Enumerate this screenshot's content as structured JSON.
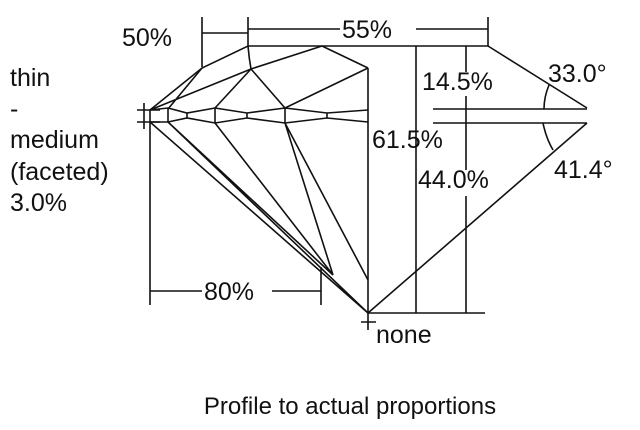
{
  "diagram": {
    "crown_angle_label": "33.0°",
    "pavilion_angle_label": "41.4°",
    "crown_height_label": "14.5%",
    "total_depth_label": "61.5%",
    "pavilion_depth_label": "44.0%",
    "table_label": "55%",
    "star_length_label": "50%",
    "lower_half_label": "80%",
    "culet_label": "none",
    "girdle_labels": [
      "thin",
      "-",
      "medium",
      "(faceted)",
      "3.0%"
    ],
    "caption": "Profile to actual proportions",
    "line_color": "#111111"
  }
}
